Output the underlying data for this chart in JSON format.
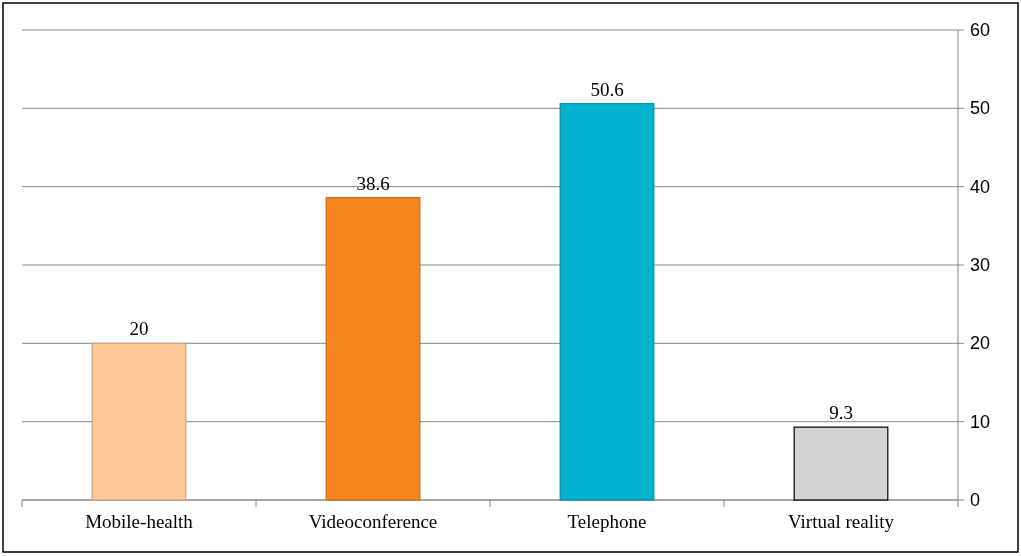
{
  "chart_data": {
    "type": "bar",
    "categories": [
      "Mobile-health",
      "Videoconference",
      "Telephone",
      "Virtual reality"
    ],
    "values": [
      20,
      38.6,
      50.6,
      9.3
    ],
    "colors": [
      "#fdc99b",
      "#f7861c",
      "#00b2cf",
      "#d4d4d4"
    ],
    "ylim": [
      0,
      60
    ],
    "yticks": [
      0,
      10,
      20,
      30,
      40,
      50,
      60
    ],
    "grid": "y",
    "data_labels": true
  }
}
